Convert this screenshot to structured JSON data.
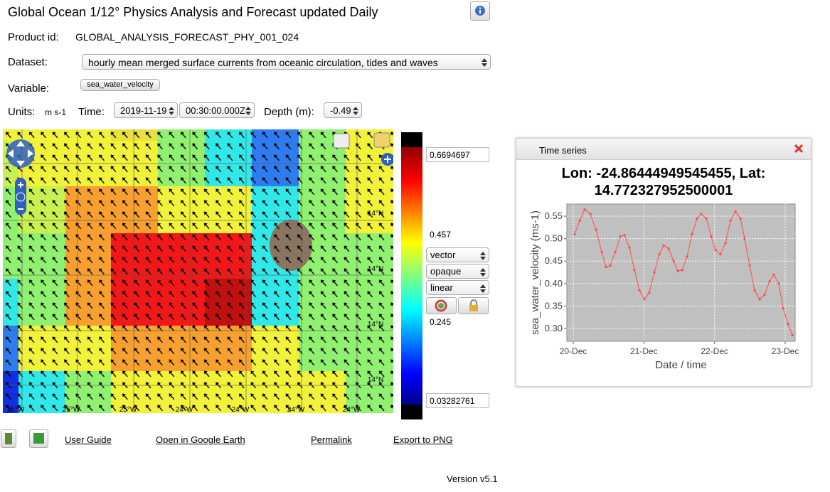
{
  "header": {
    "title": "Global Ocean 1/12° Physics Analysis and Forecast updated Daily"
  },
  "product": {
    "label": "Product id:",
    "value": "GLOBAL_ANALYSIS_FORECAST_PHY_001_024"
  },
  "dataset": {
    "label": "Dataset:",
    "value": "hourly mean merged surface currents from oceanic circulation, tides and waves"
  },
  "variable": {
    "label": "Variable:",
    "value": "sea_water_velocity"
  },
  "units": {
    "label": "Units:",
    "value": "m s-1"
  },
  "time": {
    "label": "Time:",
    "date": "2019-11-19",
    "time": "00:30:00.000Z"
  },
  "depth": {
    "label": "Depth (m):",
    "value": "-0.49"
  },
  "map": {
    "lat_labels": [
      "14°N",
      "14°N",
      "14°N",
      "14°N"
    ],
    "lon_labels": [
      "25°W",
      "25°W",
      "25°W",
      "24°W",
      "24°W",
      "24°W",
      "24°W"
    ]
  },
  "colorbar": {
    "max": "0.6694697",
    "mid_high": "0.457",
    "mid_low": "0.245",
    "min": "0.03282761",
    "style": "vector",
    "opacity": "opaque",
    "scale": "linear"
  },
  "links": [
    "User Guide",
    "Open in Google Earth",
    "Permalink",
    "Export to PNG"
  ],
  "footer": {
    "version": "Version v5.1"
  },
  "panel": {
    "title": "Time series"
  },
  "chart_data": {
    "type": "line",
    "title": "Lon: -24.86444949545455, Lat: 14.772327952500001",
    "x_label": "Date / time",
    "y_label": "sea_water_velocity (ms-1)",
    "color": "#ff4a4a",
    "grid": true,
    "x": [
      0.02,
      0.091,
      0.161,
      0.242,
      0.322,
      0.403,
      0.463,
      0.524,
      0.594,
      0.665,
      0.725,
      0.795,
      0.866,
      0.936,
      1.007,
      1.077,
      1.148,
      1.218,
      1.279,
      1.349,
      1.42,
      1.48,
      1.54,
      1.611,
      1.681,
      1.752,
      1.812,
      1.883,
      1.953,
      2.014,
      2.084,
      2.155,
      2.225,
      2.296,
      2.366,
      2.426,
      2.497,
      2.567,
      2.638,
      2.708,
      2.779,
      2.839,
      2.91,
      2.97,
      3.041,
      3.101
    ],
    "values": [
      0.51,
      0.54,
      0.565,
      0.555,
      0.52,
      0.47,
      0.437,
      0.44,
      0.47,
      0.505,
      0.508,
      0.48,
      0.43,
      0.385,
      0.365,
      0.38,
      0.425,
      0.465,
      0.485,
      0.478,
      0.45,
      0.428,
      0.43,
      0.46,
      0.51,
      0.545,
      0.555,
      0.545,
      0.505,
      0.475,
      0.465,
      0.49,
      0.54,
      0.56,
      0.545,
      0.5,
      0.44,
      0.385,
      0.365,
      0.375,
      0.405,
      0.42,
      0.4,
      0.345,
      0.31,
      0.285
    ],
    "xlim": [
      -0.091,
      3.141
    ],
    "xticks": [
      {
        "value": 0,
        "label": "20-Dec"
      },
      {
        "value": 1,
        "label": "21-Dec"
      },
      {
        "value": 2,
        "label": "22-Dec"
      },
      {
        "value": 3,
        "label": "23-Dec"
      }
    ],
    "ylim": [
      0.2715,
      0.577
    ],
    "yticks": [
      {
        "value": 0.3,
        "label": "0.30"
      },
      0.35,
      {
        "value": 0.4,
        "label": "0.40"
      },
      0.45,
      {
        "value": 0.5,
        "label": "0.50"
      },
      0.55
    ]
  }
}
